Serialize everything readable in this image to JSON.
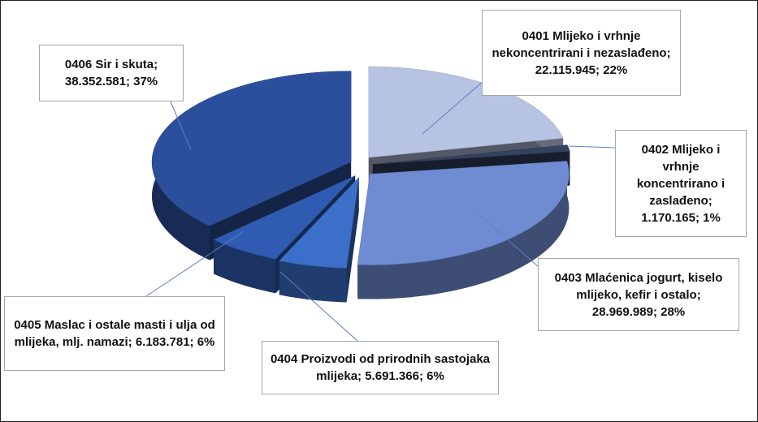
{
  "chart_data": {
    "type": "pie",
    "categories": [
      "0401 Mlijeko i vrhnje nekoncentrirani i nezaslađeno",
      "0402 Mlijeko i vrhnje koncentrirano i zaslađeno",
      "0403 Mlaćenica jogurt, kiselo mlijeko, kefir i ostalo",
      "0404 Proizvodi od prirodnih sastojaka mlijeka",
      "0405 Maslac i ostale masti i ulja od mlijeka, mlj. namazi",
      "0406 Sir i skuta"
    ],
    "values": [
      22115945,
      1170165,
      28969989,
      5691366,
      6183781,
      38352581
    ],
    "value_labels": [
      "22.115.945",
      "1.170.165",
      "28.969.989",
      "5.691.366",
      "6.183.781",
      "38.352.581"
    ],
    "percent_labels": [
      "22%",
      "1%",
      "28%",
      "6%",
      "6%",
      "37%"
    ],
    "label_separator": "; ",
    "colors": [
      "#b7c3e3",
      "#34415f",
      "#6f8cd2",
      "#3c6fca",
      "#2f5cb2",
      "#2c4f9c"
    ]
  }
}
